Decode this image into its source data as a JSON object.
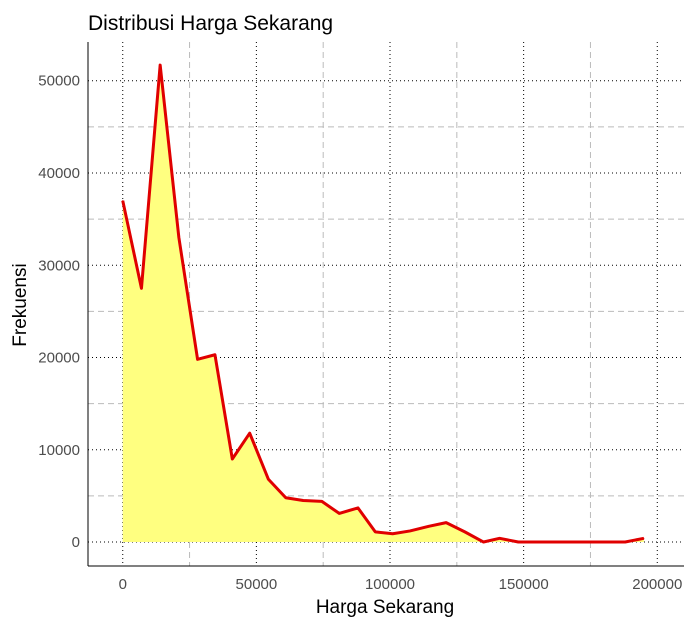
{
  "chart_data": {
    "type": "area",
    "title": "Distribusi Harga Sekarang",
    "xlabel": "Harga Sekarang",
    "ylabel": "Frekuensi",
    "xlim": [
      -13000,
      210000
    ],
    "ylim": [
      -2600,
      54200
    ],
    "x_ticks": [
      0,
      50000,
      100000,
      150000,
      200000
    ],
    "y_ticks": [
      0,
      10000,
      20000,
      30000,
      40000,
      50000
    ],
    "x_tick_labels": [
      "0",
      "50000",
      "100000",
      "150000",
      "200000"
    ],
    "y_tick_labels": [
      "0",
      "10000",
      "20000",
      "30000",
      "40000",
      "50000"
    ],
    "grid": true,
    "series": [
      {
        "name": "",
        "line_color": "#e00000",
        "fill_color": "#ffff80",
        "x": [
          0,
          7000,
          14000,
          21000,
          28000,
          34500,
          41000,
          47500,
          54500,
          61000,
          67500,
          74500,
          81000,
          88000,
          94500,
          101000,
          107500,
          114500,
          121000,
          128000,
          135000,
          141000,
          148000,
          154500,
          161000,
          168000,
          174500,
          181000,
          188000,
          195000
        ],
        "y": [
          37000,
          27500,
          51700,
          33000,
          19800,
          20300,
          9000,
          11800,
          6800,
          4800,
          4500,
          4400,
          3100,
          3700,
          1100,
          900,
          1200,
          1700,
          2100,
          1100,
          0,
          400,
          0,
          0,
          0,
          0,
          0,
          0,
          0,
          400
        ]
      }
    ]
  }
}
